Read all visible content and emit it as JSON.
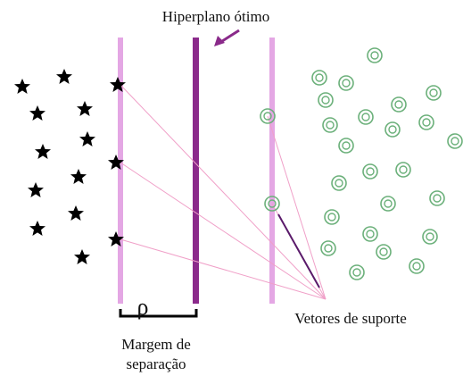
{
  "title": "Hiperplano ótimo",
  "margin_symbol": "ρ",
  "margin_label": [
    "Margem de",
    "separação"
  ],
  "support_vectors_label": "Vetores de suporte"
}
